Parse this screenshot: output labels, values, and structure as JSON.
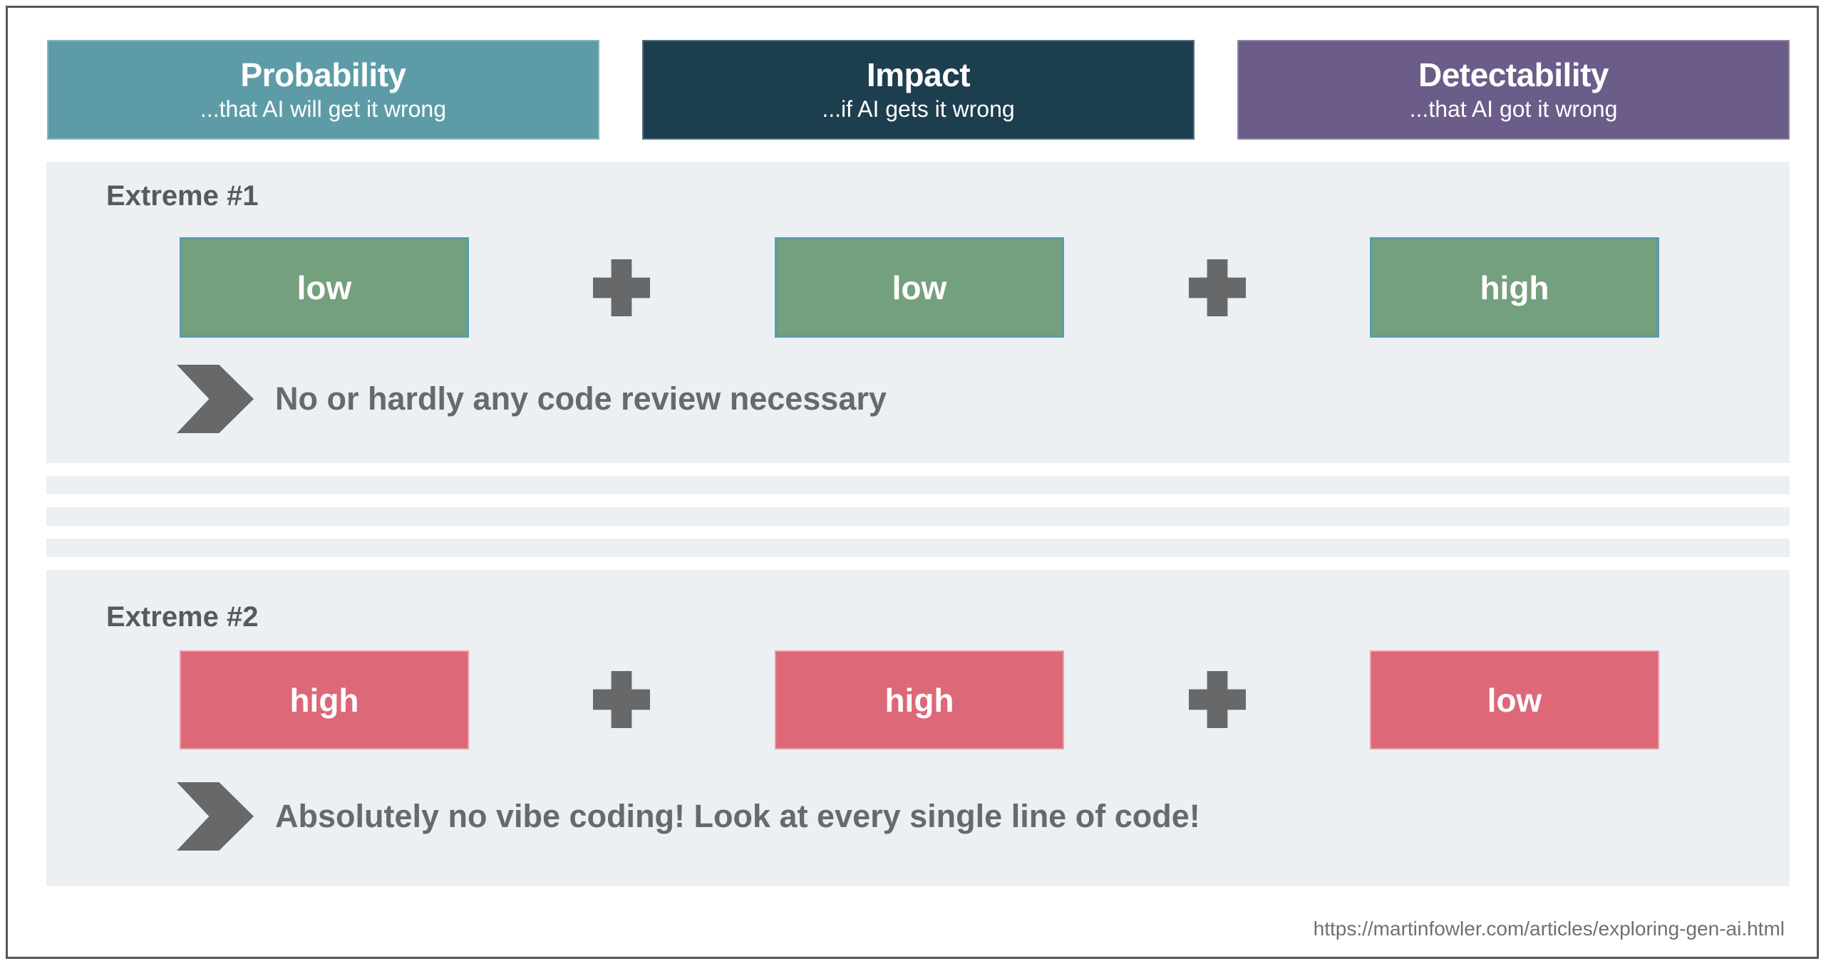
{
  "columns": [
    {
      "title": "Probability",
      "subtitle": "...that AI will get it wrong",
      "color": "#5d9ca7"
    },
    {
      "title": "Impact",
      "subtitle": "...if AI gets it wrong",
      "color": "#1d3e4f"
    },
    {
      "title": "Detectability",
      "subtitle": "...that AI got it wrong",
      "color": "#6b5c89"
    }
  ],
  "scenarios": [
    {
      "label": "Extreme #1",
      "values": [
        {
          "text": "low",
          "level": "good"
        },
        {
          "text": "low",
          "level": "good"
        },
        {
          "text": "high",
          "level": "good"
        }
      ],
      "conclusion": "No or hardly any code review necessary"
    },
    {
      "label": "Extreme #2",
      "values": [
        {
          "text": "high",
          "level": "bad"
        },
        {
          "text": "high",
          "level": "bad"
        },
        {
          "text": "low",
          "level": "bad"
        }
      ],
      "conclusion": "Absolutely no vibe coding! Look at every single line of code!"
    }
  ],
  "footer": {
    "url": "https://martinfowler.com/articles/exploring-gen-ai.html"
  },
  "colors": {
    "good_value_fill": "#75a07d",
    "good_value_border": "#5d9ca7",
    "bad_value_fill": "#dd6878",
    "panel_background": "#ecf0f3",
    "icon_gray": "#666869",
    "text_gray": "#58595b",
    "frame_border": "#55575a"
  }
}
